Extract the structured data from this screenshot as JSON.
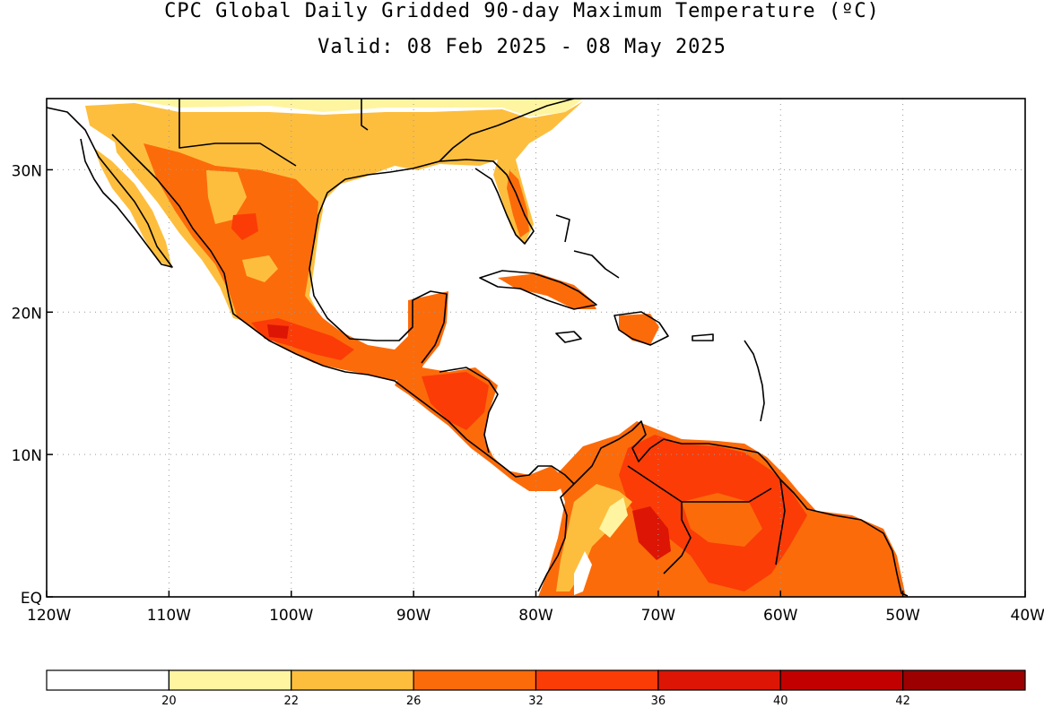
{
  "title": "CPC Global Daily Gridded 90-day Maximum Temperature (ºC)",
  "subtitle": "Valid: 08 Feb 2025 - 08 May 2025",
  "map": {
    "lon_range": [
      -120,
      -40
    ],
    "lat_range": [
      0,
      35
    ],
    "grid": true,
    "lat_labels": [
      "30N",
      "20N",
      "10N",
      "EQ"
    ],
    "lon_labels": [
      "120W",
      "110W",
      "100W",
      "90W",
      "80W",
      "70W",
      "60W",
      "50W",
      "40W"
    ]
  },
  "colorbar": {
    "thresholds": [
      "20",
      "22",
      "26",
      "32",
      "36",
      "40",
      "42"
    ],
    "colors": [
      "#ffffff",
      "#fff5a0",
      "#fdbe3e",
      "#fc6b0a",
      "#fb3c07",
      "#dd1505",
      "#c20000",
      "#9c0000"
    ]
  }
}
